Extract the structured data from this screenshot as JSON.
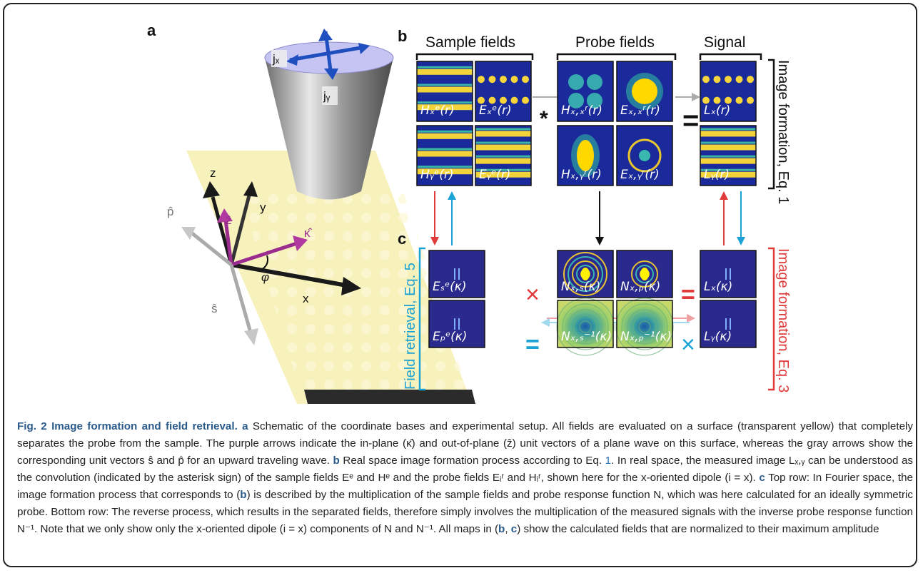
{
  "panel_a": {
    "letter": "a",
    "labels": {
      "jx": "jₓ",
      "jy": "jᵧ",
      "z": "z",
      "y": "y",
      "x": "x",
      "p_hat": "p̂",
      "s_hat": "ŝ",
      "z_hat": "ẑ",
      "kappa_hat": "κ̂",
      "phi": "φ"
    },
    "colors": {
      "plane": "#f6efb0",
      "probe": "#8a8a8a",
      "arrow_purple": "#9a2b8f",
      "arrow_blue": "#1f4fbf"
    }
  },
  "panel_b": {
    "letter": "b",
    "headers": {
      "sample": "Sample fields",
      "probe": "Probe fields",
      "signal": "Signal"
    },
    "side_label": "Image formation, Eq. 1",
    "operators": {
      "convolve": "*",
      "equals": "="
    },
    "maps": [
      {
        "label": "Hₓᵉ(r)",
        "style": "stripes-h"
      },
      {
        "label": "Eₓᵉ(r)",
        "style": "dots"
      },
      {
        "label": "Hₓ,ₓʳ(r)",
        "style": "quad"
      },
      {
        "label": "Eₓ,ₓʳ(r)",
        "style": "blob"
      },
      {
        "label": "Lₓ(r)",
        "style": "dots"
      },
      {
        "label": "Hᵧᵉ(r)",
        "style": "stripes-h"
      },
      {
        "label": "Eᵧᵉ(r)",
        "style": "stripes-h2"
      },
      {
        "label": "Hₓ,ᵧʳ(r)",
        "style": "blob-v"
      },
      {
        "label": "Eₓ,ᵧʳ(r)",
        "style": "ring"
      },
      {
        "label": "Lᵧ(r)",
        "style": "stripes-h2"
      }
    ]
  },
  "panel_c": {
    "letter": "c",
    "left_label": "Field retrieval, Eq. 5",
    "right_label": "Image formation, Eq. 3",
    "operators": {
      "times": "×",
      "equals": "="
    },
    "maps": [
      {
        "label": "Eₛᵉ(κ)",
        "style": "fourier"
      },
      {
        "label": "Nₓ,ₛ(κ)",
        "style": "rings"
      },
      {
        "label": "Nₓ,ₚ(κ)",
        "style": "rings-small"
      },
      {
        "label": "Lₓ(κ)",
        "style": "fourier"
      },
      {
        "label": "Eₚᵉ(κ)",
        "style": "fourier"
      },
      {
        "label": "Nₓ,ₛ⁻¹(κ)",
        "style": "inverse"
      },
      {
        "label": "Nₓ,ₚ⁻¹(κ)",
        "style": "inverse"
      },
      {
        "label": "Lᵧ(κ)",
        "style": "fourier"
      }
    ],
    "colors": {
      "retrieval": "#1ba3d6",
      "formation": "#e03b3b"
    }
  },
  "caption": {
    "title": "Fig. 2 Image formation and field retrieval.",
    "a_letter": "a",
    "a_text": " Schematic of the coordinate bases and experimental setup. All fields are evaluated on a surface (transparent yellow) that completely separates the probe from the sample. The purple arrows indicate the in-plane (κ̂) and out-of-plane (ẑ) unit vectors of a plane wave on this surface, whereas the gray arrows show the corresponding unit vectors ŝ and p̂ for an upward traveling wave. ",
    "b_letter": "b",
    "b_text_1": " Real space image formation process according to Eq. ",
    "b_ref": "1",
    "b_text_2": ". In real space, the measured image Lₓ,ᵧ can be understood as the convolution (indicated by the asterisk sign) of the sample fields Eᵉ and Hᵉ and the probe fields Eᵢʳ and Hᵢʳ, shown here for the x-oriented dipole (i = x). ",
    "c_letter": "c",
    "c_text_1": " Top row: In Fourier space, the image formation process that corresponds to (",
    "c_b": "b",
    "c_text_2": ") is described by the multiplication of the sample fields and probe response function N, which was here calculated for an ideally symmetric probe. Bottom row: The reverse process, which results in the separated fields, therefore simply involves the multiplication of the measured signals with the inverse probe response function N⁻¹. Note that we only show only the x-oriented dipole (i = x) components of N and N⁻¹. All maps in (",
    "c_b2": "b",
    "c_sep": ", ",
    "c_c2": "c",
    "c_text_3": ") show the calculated fields that are normalized to their maximum amplitude"
  }
}
